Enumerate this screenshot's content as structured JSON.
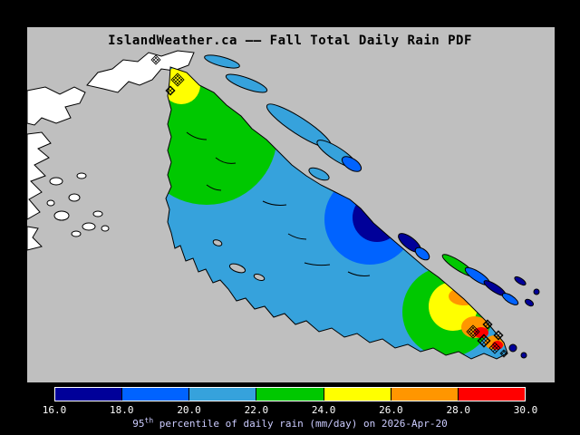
{
  "header": {
    "title": "IslandWeather.ca —— Fall Total Daily Rain PDF"
  },
  "map": {
    "sea_color": "#bfbfbf",
    "no_data_land_color": "#ffffff",
    "coastline_color": "#000000"
  },
  "colorbar": {
    "tick_labels": [
      "16.0",
      "18.0",
      "20.0",
      "22.0",
      "24.0",
      "26.0",
      "28.0",
      "30.0"
    ],
    "segment_colors": [
      "#000099",
      "#0063ff",
      "#36a2dc",
      "#00c800",
      "#ffff00",
      "#ff9600",
      "#ff0000"
    ],
    "tick_color": "#ffffff",
    "caption_color": "#ccccff",
    "caption": {
      "base": "95",
      "sup": "th",
      "rest": " percentile of daily rain (mm/day) on 2026-Apr-20"
    }
  },
  "chart_data": {
    "type": "heatmap",
    "title": "IslandWeather.ca —— Fall Total Daily Rain PDF",
    "variable": "95th percentile of daily rain",
    "units": "mm/day",
    "season": "Fall",
    "date": "2026-Apr-20",
    "region": "Vancouver Island",
    "colorbar_ticks": [
      16.0,
      18.0,
      20.0,
      22.0,
      24.0,
      26.0,
      28.0,
      30.0
    ],
    "scale_min": 16.0,
    "scale_max": 30.0,
    "scale_step": 2.0,
    "bins": [
      {
        "min": 16,
        "max": 18,
        "color": "#000099"
      },
      {
        "min": 18,
        "max": 20,
        "color": "#0063ff"
      },
      {
        "min": 20,
        "max": 22,
        "color": "#36a2dc"
      },
      {
        "min": 22,
        "max": 24,
        "color": "#00c800"
      },
      {
        "min": 24,
        "max": 26,
        "color": "#ffff00"
      },
      {
        "min": 26,
        "max": 28,
        "color": "#ff9600"
      },
      {
        "min": 28,
        "max": 30,
        "color": "#ff0000"
      }
    ],
    "regions": [
      {
        "area": "northern island tip",
        "value_range_mm_day": "24-26"
      },
      {
        "area": "north-central island",
        "value_range_mm_day": "22-24"
      },
      {
        "area": "central and west island (majority)",
        "value_range_mm_day": "20-22"
      },
      {
        "area": "east-central coast core",
        "value_range_mm_day": "16-18"
      },
      {
        "area": "east-central coast ring",
        "value_range_mm_day": "18-20"
      },
      {
        "area": "south island outer ring",
        "value_range_mm_day": "22-24"
      },
      {
        "area": "south island inner",
        "value_range_mm_day": "24-26"
      },
      {
        "area": "south tip spots",
        "value_range_mm_day": "26-30"
      },
      {
        "area": "southern gulf islands",
        "value_range_mm_day": "16-20"
      },
      {
        "area": "hatched areas",
        "note": "cross-hatch marks at north tip and south tip"
      }
    ]
  }
}
